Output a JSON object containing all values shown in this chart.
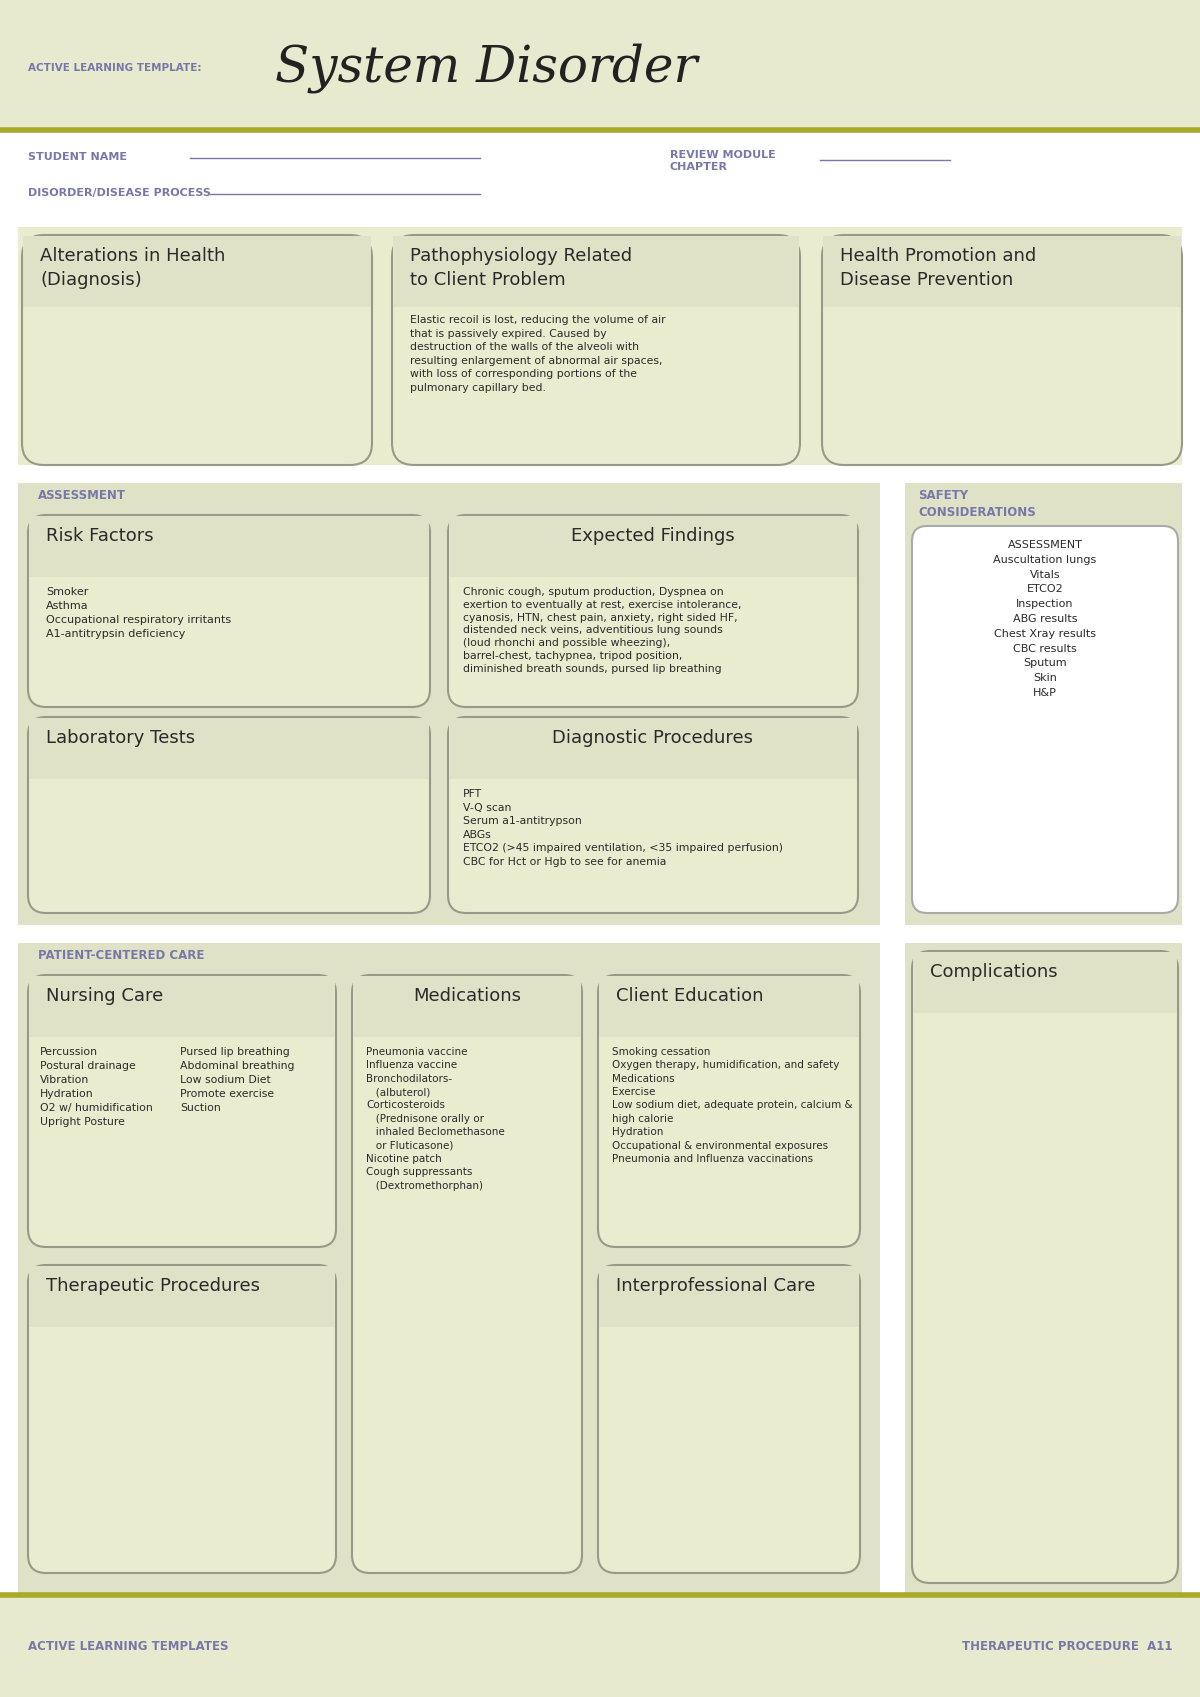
{
  "header_bg": "#e8ead0",
  "white_bg": "#ffffff",
  "section_bg": "#e0e2c8",
  "box_bg": "#eaecd0",
  "box_border": "#999988",
  "box_border_white": "#aaaaaa",
  "purple_text": "#7878a8",
  "dark_text": "#2a2a2a",
  "olive_line": "#a8aa28",
  "title_large": "System Disorder",
  "title_small": "ACTIVE LEARNING TEMPLATE:",
  "student_name_label": "STUDENT NAME",
  "disorder_label": "DISORDER/DISEASE PROCESS",
  "review_module": "REVIEW MODULE\nCHAPTER",
  "section1_title": "Alterations in Health\n(Diagnosis)",
  "section2_title": "Pathophysiology Related\nto Client Problem",
  "section2_body": "Elastic recoil is lost, reducing the volume of air\nthat is passively expired. Caused by\ndestruction of the walls of the alveoli with\nresulting enlargement of abnormal air spaces,\nwith loss of corresponding portions of the\npulmonary capillary bed.",
  "section3_title": "Health Promotion and\nDisease Prevention",
  "assessment_label": "ASSESSMENT",
  "safety_label": "SAFETY\nCONSIDERATIONS",
  "risk_title": "Risk Factors",
  "risk_body": "Smoker\nAsthma\nOccupational respiratory irritants\nA1-antitrypsin deficiency",
  "expected_title": "Expected Findings",
  "expected_body": "Chronic cough, sputum production, Dyspnea on\nexertion to eventually at rest, exercise intolerance,\ncyanosis, HTN, chest pain, anxiety, right sided HF,\ndistended neck veins, adventitious lung sounds\n(loud rhonchi and possible wheezing),\nbarrel-chest, tachypnea, tripod position,\ndiminished breath sounds, pursed lip breathing",
  "safety_body": "ASSESSMENT\nAuscultation lungs\nVitals\nETCO2\nInspection\nABG results\nChest Xray results\nCBC results\nSputum\nSkin\nH&P",
  "lab_title": "Laboratory Tests",
  "diag_title": "Diagnostic Procedures",
  "diag_body": "PFT\nV-Q scan\nSerum a1-antitrypson\nABGs\nETCO2 (>45 impaired ventilation, <35 impaired perfusion)\nCBC for Hct or Hgb to see for anemia",
  "patient_care_label": "PATIENT-CENTERED CARE",
  "complications_title": "Complications",
  "nursing_title": "Nursing Care",
  "nursing_body_left": "Percussion\nPostural drainage\nVibration\nHydration\nO2 w/ humidification\nUpright Posture",
  "nursing_body_right": "Pursed lip breathing\nAbdominal breathing\nLow sodium Diet\nPromote exercise\nSuction",
  "medications_title": "Medications",
  "medications_body": "Pneumonia vaccine\nInfluenza vaccine\nBronchodilators-\n   (albuterol)\nCorticosteroids\n   (Prednisone orally or\n   inhaled Beclomethasone\n   or Fluticasone)\nNicotine patch\nCough suppressants\n   (Dextromethorphan)",
  "client_ed_title": "Client Education",
  "client_ed_body": "Smoking cessation\nOxygen therapy, humidification, and safety\nMedications\nExercise\nLow sodium diet, adequate protein, calcium &\nhigh calorie\nHydration\nOccupational & environmental exposures\nPneumonia and Influenza vaccinations",
  "therapeutic_title": "Therapeutic Procedures",
  "interpro_title": "Interprofessional Care",
  "footer_left": "ACTIVE LEARNING TEMPLATES",
  "footer_right": "THERAPEUTIC PROCEDURE  A11"
}
